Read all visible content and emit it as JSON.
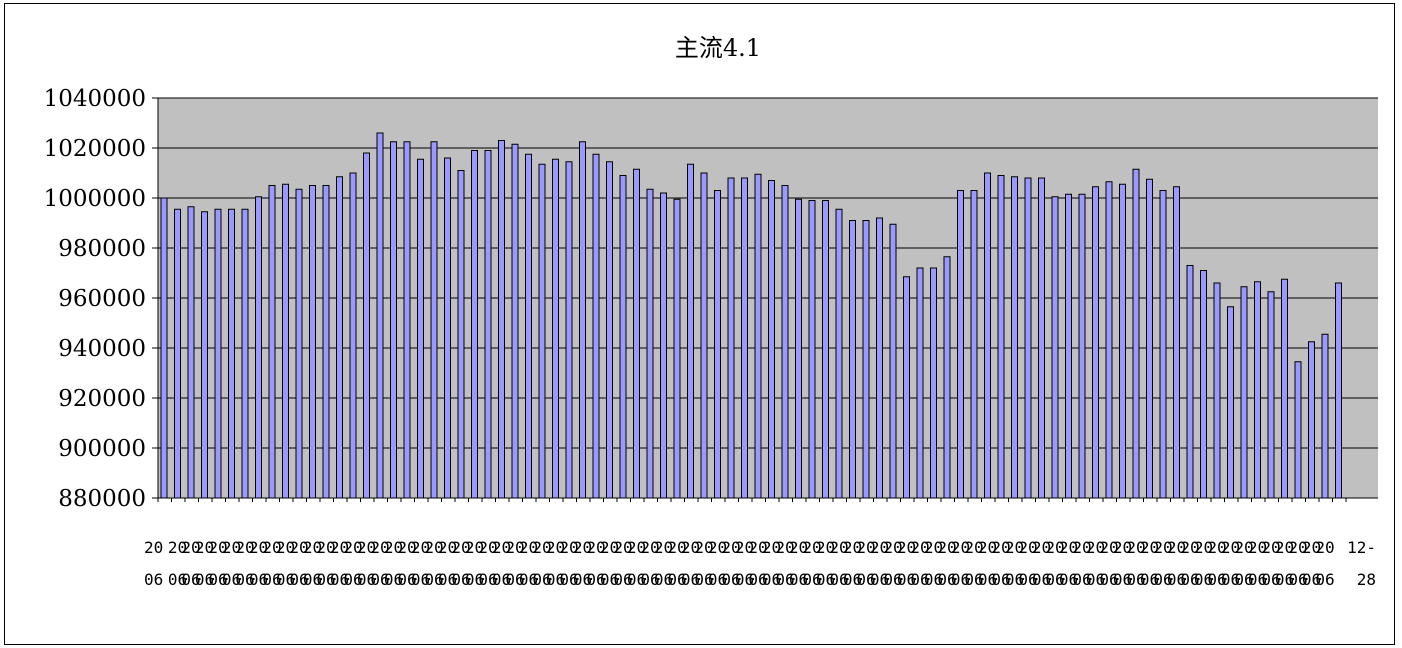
{
  "chart_data": {
    "type": "bar",
    "title": "主流4.1",
    "xlabel": "",
    "ylabel": "",
    "ylim": [
      880000,
      1040000
    ],
    "y_ticks": [
      880000,
      900000,
      920000,
      940000,
      960000,
      980000,
      1000000,
      1020000,
      1040000
    ],
    "grid": true,
    "legend": "none",
    "colors": {
      "plot_bg": "#c0c0c0",
      "bar_fill": "#9999ff",
      "bar_stroke": "#000000",
      "gridline": "#000000"
    },
    "first_category_label": [
      "20",
      "06"
    ],
    "last_category_label": [
      "12-",
      "28"
    ],
    "values": [
      1000000,
      995500,
      996500,
      994500,
      995500,
      995500,
      995500,
      1000500,
      1005000,
      1005500,
      1003500,
      1005000,
      1005000,
      1008500,
      1010000,
      1018000,
      1026000,
      1022500,
      1022500,
      1015500,
      1022500,
      1016000,
      1011000,
      1019000,
      1019000,
      1023000,
      1021500,
      1017500,
      1013500,
      1015500,
      1014500,
      1022500,
      1017500,
      1014500,
      1009000,
      1011500,
      1003500,
      1002000,
      999500,
      1013500,
      1010000,
      1003000,
      1008000,
      1008000,
      1009500,
      1007000,
      1005000,
      999500,
      999000,
      999000,
      995500,
      991000,
      991000,
      992000,
      989500,
      968500,
      972000,
      972000,
      976500,
      1003000,
      1003000,
      1010000,
      1009000,
      1008500,
      1008000,
      1008000,
      1000500,
      1001500,
      1001500,
      1004500,
      1006500,
      1005500,
      1011500,
      1007500,
      1003000,
      1004500,
      973000,
      971000,
      966000,
      956500,
      964500,
      966500,
      962500,
      967500,
      934500,
      942500,
      945500,
      966000
    ]
  }
}
